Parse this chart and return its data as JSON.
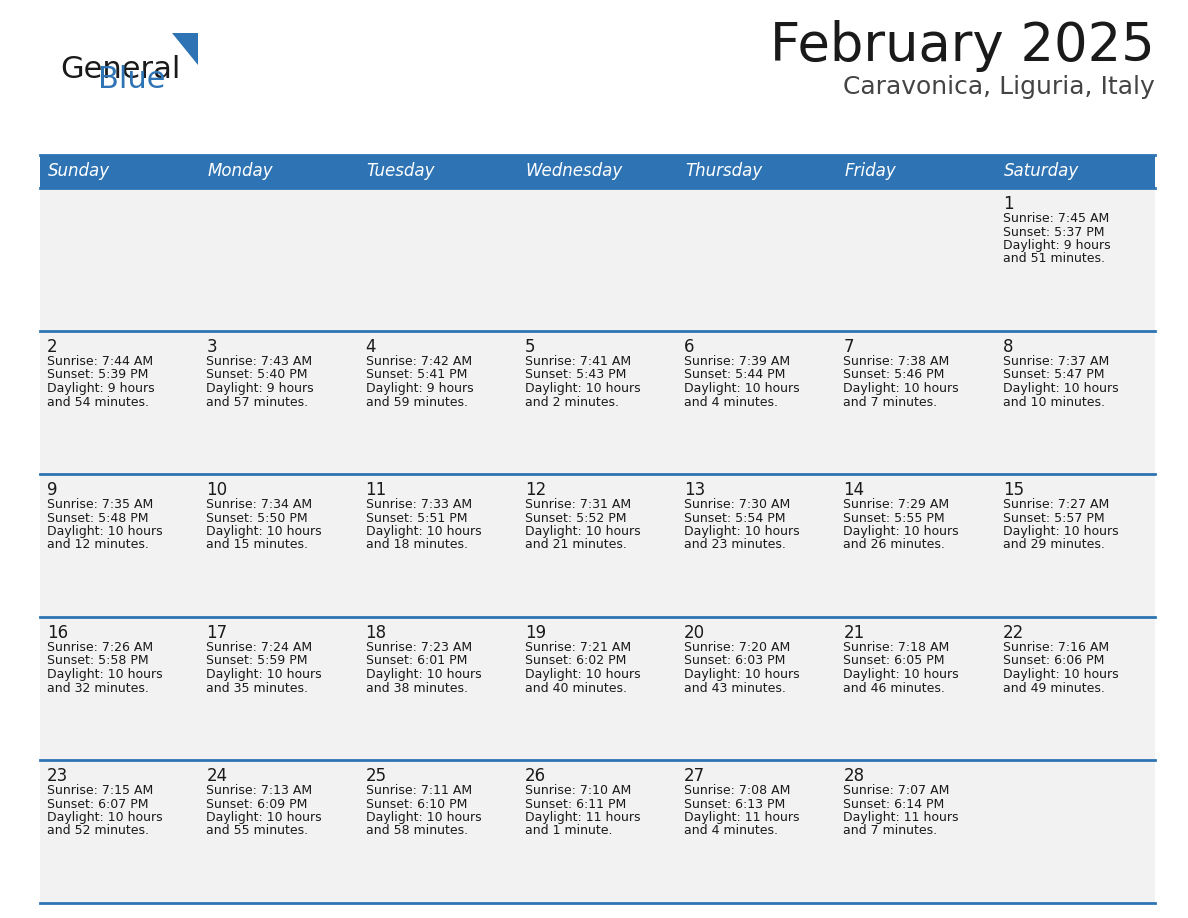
{
  "title": "February 2025",
  "subtitle": "Caravonica, Liguria, Italy",
  "header_bg": "#2E74B5",
  "header_text": "#FFFFFF",
  "cell_bg": "#F2F2F2",
  "border_color": "#2E74B5",
  "text_color": "#1a1a1a",
  "day_headers": [
    "Sunday",
    "Monday",
    "Tuesday",
    "Wednesday",
    "Thursday",
    "Friday",
    "Saturday"
  ],
  "logo_general_color": "#1a1a1a",
  "logo_blue_color": "#2E74B5",
  "logo_triangle_color": "#2E74B5",
  "title_fontsize": 38,
  "subtitle_fontsize": 18,
  "header_fontsize": 12,
  "day_num_fontsize": 12,
  "cell_text_fontsize": 9,
  "days": [
    {
      "day": 1,
      "col": 6,
      "row": 0,
      "sunrise": "7:45 AM",
      "sunset": "5:37 PM",
      "daylight_hours": 9,
      "daylight_minutes": 51
    },
    {
      "day": 2,
      "col": 0,
      "row": 1,
      "sunrise": "7:44 AM",
      "sunset": "5:39 PM",
      "daylight_hours": 9,
      "daylight_minutes": 54
    },
    {
      "day": 3,
      "col": 1,
      "row": 1,
      "sunrise": "7:43 AM",
      "sunset": "5:40 PM",
      "daylight_hours": 9,
      "daylight_minutes": 57
    },
    {
      "day": 4,
      "col": 2,
      "row": 1,
      "sunrise": "7:42 AM",
      "sunset": "5:41 PM",
      "daylight_hours": 9,
      "daylight_minutes": 59
    },
    {
      "day": 5,
      "col": 3,
      "row": 1,
      "sunrise": "7:41 AM",
      "sunset": "5:43 PM",
      "daylight_hours": 10,
      "daylight_minutes": 2
    },
    {
      "day": 6,
      "col": 4,
      "row": 1,
      "sunrise": "7:39 AM",
      "sunset": "5:44 PM",
      "daylight_hours": 10,
      "daylight_minutes": 4
    },
    {
      "day": 7,
      "col": 5,
      "row": 1,
      "sunrise": "7:38 AM",
      "sunset": "5:46 PM",
      "daylight_hours": 10,
      "daylight_minutes": 7
    },
    {
      "day": 8,
      "col": 6,
      "row": 1,
      "sunrise": "7:37 AM",
      "sunset": "5:47 PM",
      "daylight_hours": 10,
      "daylight_minutes": 10
    },
    {
      "day": 9,
      "col": 0,
      "row": 2,
      "sunrise": "7:35 AM",
      "sunset": "5:48 PM",
      "daylight_hours": 10,
      "daylight_minutes": 12
    },
    {
      "day": 10,
      "col": 1,
      "row": 2,
      "sunrise": "7:34 AM",
      "sunset": "5:50 PM",
      "daylight_hours": 10,
      "daylight_minutes": 15
    },
    {
      "day": 11,
      "col": 2,
      "row": 2,
      "sunrise": "7:33 AM",
      "sunset": "5:51 PM",
      "daylight_hours": 10,
      "daylight_minutes": 18
    },
    {
      "day": 12,
      "col": 3,
      "row": 2,
      "sunrise": "7:31 AM",
      "sunset": "5:52 PM",
      "daylight_hours": 10,
      "daylight_minutes": 21
    },
    {
      "day": 13,
      "col": 4,
      "row": 2,
      "sunrise": "7:30 AM",
      "sunset": "5:54 PM",
      "daylight_hours": 10,
      "daylight_minutes": 23
    },
    {
      "day": 14,
      "col": 5,
      "row": 2,
      "sunrise": "7:29 AM",
      "sunset": "5:55 PM",
      "daylight_hours": 10,
      "daylight_minutes": 26
    },
    {
      "day": 15,
      "col": 6,
      "row": 2,
      "sunrise": "7:27 AM",
      "sunset": "5:57 PM",
      "daylight_hours": 10,
      "daylight_minutes": 29
    },
    {
      "day": 16,
      "col": 0,
      "row": 3,
      "sunrise": "7:26 AM",
      "sunset": "5:58 PM",
      "daylight_hours": 10,
      "daylight_minutes": 32
    },
    {
      "day": 17,
      "col": 1,
      "row": 3,
      "sunrise": "7:24 AM",
      "sunset": "5:59 PM",
      "daylight_hours": 10,
      "daylight_minutes": 35
    },
    {
      "day": 18,
      "col": 2,
      "row": 3,
      "sunrise": "7:23 AM",
      "sunset": "6:01 PM",
      "daylight_hours": 10,
      "daylight_minutes": 38
    },
    {
      "day": 19,
      "col": 3,
      "row": 3,
      "sunrise": "7:21 AM",
      "sunset": "6:02 PM",
      "daylight_hours": 10,
      "daylight_minutes": 40
    },
    {
      "day": 20,
      "col": 4,
      "row": 3,
      "sunrise": "7:20 AM",
      "sunset": "6:03 PM",
      "daylight_hours": 10,
      "daylight_minutes": 43
    },
    {
      "day": 21,
      "col": 5,
      "row": 3,
      "sunrise": "7:18 AM",
      "sunset": "6:05 PM",
      "daylight_hours": 10,
      "daylight_minutes": 46
    },
    {
      "day": 22,
      "col": 6,
      "row": 3,
      "sunrise": "7:16 AM",
      "sunset": "6:06 PM",
      "daylight_hours": 10,
      "daylight_minutes": 49
    },
    {
      "day": 23,
      "col": 0,
      "row": 4,
      "sunrise": "7:15 AM",
      "sunset": "6:07 PM",
      "daylight_hours": 10,
      "daylight_minutes": 52
    },
    {
      "day": 24,
      "col": 1,
      "row": 4,
      "sunrise": "7:13 AM",
      "sunset": "6:09 PM",
      "daylight_hours": 10,
      "daylight_minutes": 55
    },
    {
      "day": 25,
      "col": 2,
      "row": 4,
      "sunrise": "7:11 AM",
      "sunset": "6:10 PM",
      "daylight_hours": 10,
      "daylight_minutes": 58
    },
    {
      "day": 26,
      "col": 3,
      "row": 4,
      "sunrise": "7:10 AM",
      "sunset": "6:11 PM",
      "daylight_hours": 11,
      "daylight_minutes": 1
    },
    {
      "day": 27,
      "col": 4,
      "row": 4,
      "sunrise": "7:08 AM",
      "sunset": "6:13 PM",
      "daylight_hours": 11,
      "daylight_minutes": 4
    },
    {
      "day": 28,
      "col": 5,
      "row": 4,
      "sunrise": "7:07 AM",
      "sunset": "6:14 PM",
      "daylight_hours": 11,
      "daylight_minutes": 7
    }
  ]
}
